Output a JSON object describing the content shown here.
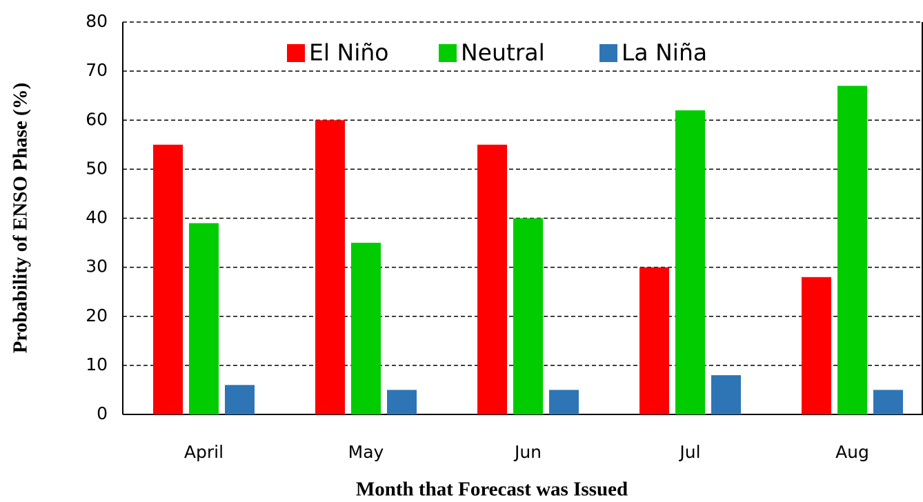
{
  "chart_data": {
    "type": "bar",
    "x_label": "Month that Forecast was Issued",
    "y_label": "Probability of ENSO Phase (%)",
    "categories": [
      "April",
      "May",
      "Jun",
      "Jul",
      "Aug"
    ],
    "series": [
      {
        "name": "El Niño",
        "color": "#ff0000",
        "values": [
          55,
          60,
          55,
          30,
          28
        ]
      },
      {
        "name": "Neutral",
        "color": "#00cc00",
        "values": [
          39,
          35,
          40,
          62,
          67
        ]
      },
      {
        "name": "La Niña",
        "color": "#2e75b6",
        "values": [
          6,
          5,
          5,
          8,
          5
        ]
      }
    ],
    "ylim": [
      0,
      80
    ],
    "yticks": [
      0,
      10,
      20,
      30,
      40,
      50,
      60,
      70,
      80
    ],
    "grid": true,
    "legend": "top"
  }
}
